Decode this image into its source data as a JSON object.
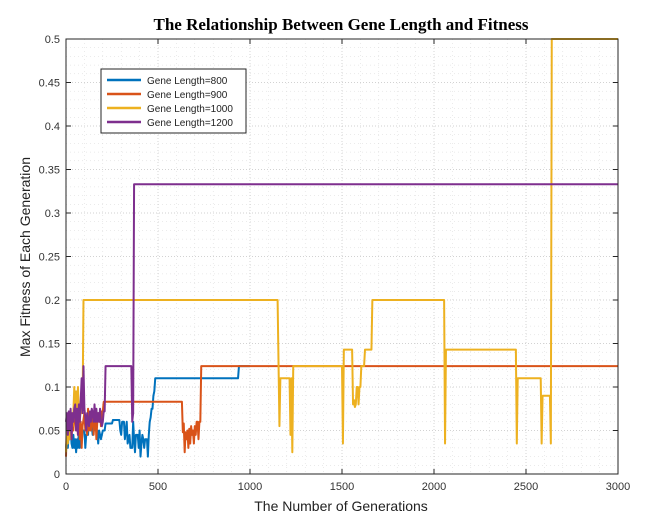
{
  "chart_data": {
    "type": "line",
    "title": "The Relationship Between Gene Length and Fitness",
    "xlabel": "The Number of Generations",
    "ylabel": "Max Fitness of Each Generation",
    "xlim": [
      0,
      3000
    ],
    "ylim": [
      0,
      0.5
    ],
    "xticks": [
      "0",
      "500",
      "1000",
      "1500",
      "2000",
      "2500",
      "3000"
    ],
    "yticks": [
      "0",
      "0.05",
      "0.1",
      "0.15",
      "0.2",
      "0.25",
      "0.3",
      "0.35",
      "0.4",
      "0.45",
      "0.5"
    ],
    "grid": true,
    "legend_position": "top-left",
    "series": [
      {
        "name": "Gene Length=800",
        "color": "#0072BD",
        "points": [
          [
            0,
            0.03
          ],
          [
            5,
            0.04
          ],
          [
            10,
            0.03
          ],
          [
            15,
            0.05
          ],
          [
            20,
            0.04
          ],
          [
            25,
            0.055
          ],
          [
            30,
            0.035
          ],
          [
            35,
            0.03
          ],
          [
            40,
            0.045
          ],
          [
            45,
            0.03
          ],
          [
            50,
            0.04
          ],
          [
            55,
            0.025
          ],
          [
            60,
            0.04
          ],
          [
            65,
            0.03
          ],
          [
            70,
            0.05
          ],
          [
            75,
            0.03
          ],
          [
            80,
            0.045
          ],
          [
            85,
            0.035
          ],
          [
            90,
            0.05
          ],
          [
            100,
            0.05
          ],
          [
            105,
            0.03
          ],
          [
            110,
            0.045
          ],
          [
            120,
            0.045
          ],
          [
            125,
            0.07
          ],
          [
            135,
            0.07
          ],
          [
            140,
            0.055
          ],
          [
            145,
            0.045
          ],
          [
            150,
            0.06
          ],
          [
            155,
            0.07
          ],
          [
            160,
            0.05
          ],
          [
            170,
            0.05
          ],
          [
            175,
            0.035
          ],
          [
            180,
            0.05
          ],
          [
            190,
            0.04
          ],
          [
            200,
            0.05
          ],
          [
            210,
            0.05
          ],
          [
            215,
            0.058
          ],
          [
            250,
            0.058
          ],
          [
            255,
            0.062
          ],
          [
            290,
            0.062
          ],
          [
            295,
            0.05
          ],
          [
            300,
            0.045
          ],
          [
            305,
            0.06
          ],
          [
            315,
            0.06
          ],
          [
            320,
            0.04
          ],
          [
            330,
            0.06
          ],
          [
            335,
            0.035
          ],
          [
            345,
            0.045
          ],
          [
            350,
            0.03
          ],
          [
            360,
            0.03
          ],
          [
            365,
            0.06
          ],
          [
            370,
            0.04
          ],
          [
            375,
            0.025
          ],
          [
            380,
            0.045
          ],
          [
            390,
            0.045
          ],
          [
            395,
            0.03
          ],
          [
            400,
            0.05
          ],
          [
            405,
            0.02
          ],
          [
            410,
            0.035
          ],
          [
            415,
            0.045
          ],
          [
            420,
            0.04
          ],
          [
            425,
            0.03
          ],
          [
            430,
            0.04
          ],
          [
            440,
            0.04
          ],
          [
            445,
            0.02
          ],
          [
            450,
            0.045
          ],
          [
            455,
            0.06
          ],
          [
            460,
            0.065
          ],
          [
            465,
            0.075
          ],
          [
            470,
            0.075
          ],
          [
            475,
            0.09
          ],
          [
            480,
            0.095
          ],
          [
            485,
            0.11
          ],
          [
            935,
            0.11
          ],
          [
            940,
            0.124
          ],
          [
            1000,
            0.124
          ]
        ]
      },
      {
        "name": "Gene Length=900",
        "color": "#D95319",
        "points": [
          [
            0,
            0.02
          ],
          [
            5,
            0.065
          ],
          [
            10,
            0.045
          ],
          [
            15,
            0.07
          ],
          [
            20,
            0.05
          ],
          [
            25,
            0.06
          ],
          [
            30,
            0.04
          ],
          [
            35,
            0.065
          ],
          [
            40,
            0.05
          ],
          [
            45,
            0.07
          ],
          [
            50,
            0.07
          ],
          [
            55,
            0.05
          ],
          [
            60,
            0.075
          ],
          [
            65,
            0.045
          ],
          [
            70,
            0.06
          ],
          [
            75,
            0.04
          ],
          [
            80,
            0.06
          ],
          [
            85,
            0.03
          ],
          [
            90,
            0.055
          ],
          [
            100,
            0.07
          ],
          [
            105,
            0.05
          ],
          [
            110,
            0.06
          ],
          [
            115,
            0.045
          ],
          [
            120,
            0.075
          ],
          [
            125,
            0.05
          ],
          [
            130,
            0.065
          ],
          [
            135,
            0.05
          ],
          [
            140,
            0.06
          ],
          [
            145,
            0.07
          ],
          [
            150,
            0.045
          ],
          [
            155,
            0.06
          ],
          [
            160,
            0.07
          ],
          [
            165,
            0.04
          ],
          [
            170,
            0.06
          ],
          [
            175,
            0.07
          ],
          [
            180,
            0.06
          ],
          [
            185,
            0.072
          ],
          [
            190,
            0.055
          ],
          [
            195,
            0.072
          ],
          [
            200,
            0.072
          ],
          [
            205,
            0.083
          ],
          [
            630,
            0.083
          ],
          [
            635,
            0.048
          ],
          [
            640,
            0.058
          ],
          [
            645,
            0.025
          ],
          [
            650,
            0.048
          ],
          [
            655,
            0.04
          ],
          [
            660,
            0.05
          ],
          [
            665,
            0.03
          ],
          [
            670,
            0.052
          ],
          [
            675,
            0.035
          ],
          [
            680,
            0.055
          ],
          [
            685,
            0.045
          ],
          [
            690,
            0.05
          ],
          [
            695,
            0.035
          ],
          [
            700,
            0.055
          ],
          [
            705,
            0.045
          ],
          [
            710,
            0.06
          ],
          [
            715,
            0.06
          ],
          [
            720,
            0.04
          ],
          [
            725,
            0.06
          ],
          [
            730,
            0.06
          ],
          [
            735,
            0.124
          ],
          [
            3000,
            0.124
          ]
        ]
      },
      {
        "name": "Gene Length=1000",
        "color": "#EDB120",
        "points": [
          [
            0,
            0.025
          ],
          [
            5,
            0.05
          ],
          [
            10,
            0.035
          ],
          [
            15,
            0.06
          ],
          [
            20,
            0.04
          ],
          [
            25,
            0.05
          ],
          [
            30,
            0.07
          ],
          [
            35,
            0.055
          ],
          [
            40,
            0.07
          ],
          [
            45,
            0.1
          ],
          [
            50,
            0.07
          ],
          [
            55,
            0.095
          ],
          [
            60,
            0.06
          ],
          [
            65,
            0.1
          ],
          [
            70,
            0.07
          ],
          [
            75,
            0.06
          ],
          [
            80,
            0.075
          ],
          [
            85,
            0.07
          ],
          [
            90,
            0.075
          ],
          [
            95,
            0.2
          ],
          [
            1150,
            0.2
          ],
          [
            1160,
            0.055
          ],
          [
            1165,
            0.11
          ],
          [
            1215,
            0.11
          ],
          [
            1220,
            0.045
          ],
          [
            1225,
            0.11
          ],
          [
            1230,
            0.025
          ],
          [
            1235,
            0.124
          ],
          [
            1500,
            0.124
          ],
          [
            1505,
            0.035
          ],
          [
            1510,
            0.143
          ],
          [
            1555,
            0.143
          ],
          [
            1560,
            0.08
          ],
          [
            1565,
            0.085
          ],
          [
            1570,
            0.077
          ],
          [
            1575,
            0.08
          ],
          [
            1580,
            0.1
          ],
          [
            1585,
            0.1
          ],
          [
            1590,
            0.08
          ],
          [
            1595,
            0.1
          ],
          [
            1600,
            0.1
          ],
          [
            1605,
            0.124
          ],
          [
            1620,
            0.124
          ],
          [
            1625,
            0.143
          ],
          [
            1660,
            0.143
          ],
          [
            1665,
            0.2
          ],
          [
            2055,
            0.2
          ],
          [
            2060,
            0.035
          ],
          [
            2065,
            0.143
          ],
          [
            2445,
            0.143
          ],
          [
            2450,
            0.035
          ],
          [
            2455,
            0.11
          ],
          [
            2580,
            0.11
          ],
          [
            2585,
            0.035
          ],
          [
            2590,
            0.09
          ],
          [
            2630,
            0.09
          ],
          [
            2635,
            0.035
          ],
          [
            2640,
            0.5
          ],
          [
            3000,
            0.5
          ]
        ]
      },
      {
        "name": "Gene Length=1200",
        "color": "#7E2F8E",
        "points": [
          [
            0,
            0.06
          ],
          [
            5,
            0.07
          ],
          [
            10,
            0.045
          ],
          [
            15,
            0.072
          ],
          [
            20,
            0.05
          ],
          [
            25,
            0.075
          ],
          [
            30,
            0.04
          ],
          [
            35,
            0.07
          ],
          [
            40,
            0.06
          ],
          [
            45,
            0.075
          ],
          [
            50,
            0.08
          ],
          [
            55,
            0.05
          ],
          [
            60,
            0.075
          ],
          [
            65,
            0.045
          ],
          [
            70,
            0.08
          ],
          [
            75,
            0.06
          ],
          [
            80,
            0.085
          ],
          [
            85,
            0.11
          ],
          [
            90,
            0.07
          ],
          [
            95,
            0.124
          ],
          [
            100,
            0.075
          ],
          [
            105,
            0.065
          ],
          [
            110,
            0.05
          ],
          [
            115,
            0.07
          ],
          [
            120,
            0.06
          ],
          [
            125,
            0.055
          ],
          [
            130,
            0.072
          ],
          [
            135,
            0.06
          ],
          [
            140,
            0.075
          ],
          [
            145,
            0.07
          ],
          [
            150,
            0.06
          ],
          [
            155,
            0.08
          ],
          [
            160,
            0.06
          ],
          [
            165,
            0.075
          ],
          [
            170,
            0.06
          ],
          [
            175,
            0.07
          ],
          [
            180,
            0.06
          ],
          [
            185,
            0.075
          ],
          [
            190,
            0.06
          ],
          [
            195,
            0.055
          ],
          [
            200,
            0.06
          ],
          [
            205,
            0.072
          ],
          [
            210,
            0.072
          ],
          [
            215,
            0.124
          ],
          [
            355,
            0.124
          ],
          [
            360,
            0.06
          ],
          [
            365,
            0.07
          ],
          [
            370,
            0.333
          ],
          [
            3000,
            0.333
          ]
        ]
      }
    ]
  }
}
